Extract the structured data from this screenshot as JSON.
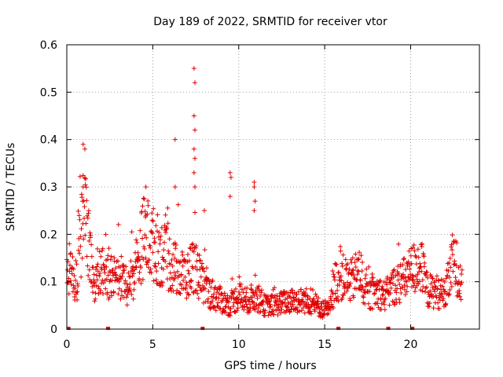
{
  "chart_data": {
    "type": "scatter",
    "title": "Day 189 of 2022, SRMTID for receiver vtor",
    "xlabel": "GPS time / hours",
    "ylabel": "SRMTID / TECUs",
    "xlim": [
      0,
      24
    ],
    "ylim": [
      0,
      0.6
    ],
    "xticks": [
      0,
      5,
      10,
      15,
      20
    ],
    "xtick_labels": [
      "0",
      "5",
      "10",
      "15",
      "20"
    ],
    "yticks": [
      0,
      0.1,
      0.2,
      0.3,
      0.4,
      0.5,
      0.6
    ],
    "ytick_labels": [
      "0",
      "0.1",
      "0.2",
      "0.3",
      "0.4",
      "0.5",
      "0.6"
    ],
    "grid": true,
    "marker": "plus",
    "color": "#e00000",
    "series": [
      {
        "name": "SRMTID",
        "profile_x": [
          0.0,
          0.3,
          0.6,
          0.8,
          1.0,
          1.2,
          1.5,
          2.0,
          2.5,
          3.0,
          3.5,
          4.0,
          4.5,
          5.0,
          5.5,
          6.0,
          6.5,
          7.0,
          7.4,
          7.8,
          8.2,
          8.6,
          9.0,
          9.5,
          10.0,
          10.5,
          11.0,
          11.5,
          12.0,
          13.0,
          14.0,
          14.5,
          15.0,
          15.3,
          15.6,
          16.0,
          16.5,
          17.0,
          17.5,
          18.0,
          18.5,
          19.0,
          19.5,
          20.0,
          20.5,
          21.0,
          21.5,
          22.0,
          22.5,
          23.0
        ],
        "profile_y": [
          0.14,
          0.12,
          0.1,
          0.18,
          0.24,
          0.2,
          0.1,
          0.12,
          0.11,
          0.12,
          0.09,
          0.12,
          0.2,
          0.18,
          0.16,
          0.14,
          0.12,
          0.11,
          0.14,
          0.1,
          0.08,
          0.07,
          0.06,
          0.05,
          0.07,
          0.06,
          0.07,
          0.05,
          0.05,
          0.06,
          0.06,
          0.05,
          0.04,
          0.04,
          0.1,
          0.11,
          0.1,
          0.12,
          0.07,
          0.08,
          0.07,
          0.09,
          0.1,
          0.12,
          0.14,
          0.08,
          0.08,
          0.07,
          0.15,
          0.09
        ],
        "spikes": [
          [
            0.95,
            0.39
          ],
          [
            1.05,
            0.38
          ],
          [
            0.95,
            0.3
          ],
          [
            4.6,
            0.3
          ],
          [
            6.3,
            0.4
          ],
          [
            6.3,
            0.3
          ],
          [
            7.4,
            0.55
          ],
          [
            7.45,
            0.52
          ],
          [
            7.4,
            0.45
          ],
          [
            7.45,
            0.42
          ],
          [
            7.4,
            0.38
          ],
          [
            7.45,
            0.36
          ],
          [
            7.4,
            0.33
          ],
          [
            7.45,
            0.3
          ],
          [
            9.5,
            0.33
          ],
          [
            9.55,
            0.32
          ],
          [
            9.5,
            0.28
          ],
          [
            10.9,
            0.31
          ],
          [
            10.9,
            0.3
          ],
          [
            10.95,
            0.27
          ],
          [
            10.9,
            0.25
          ],
          [
            8.0,
            0.25
          ]
        ],
        "zero_points": [
          0.1,
          2.4,
          7.9,
          15.8,
          18.7,
          20.1
        ]
      }
    ]
  }
}
